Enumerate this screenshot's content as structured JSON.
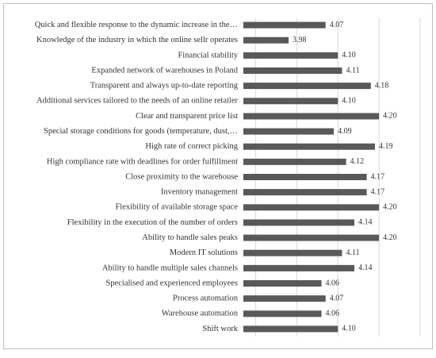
{
  "chart_data": {
    "type": "bar",
    "orientation": "horizontal",
    "categories": [
      "Quick and flexible response to the dynamic increase in the…",
      "Knowledge of the industry in which the online sellr operates",
      "Financial stability",
      "Expanded network of warehouses in Poland",
      "Transparent and always up-to-date reporting",
      "Additional services tailored to the needs of an online retailer",
      "Clear and transparent price list",
      "Special storage conditions for goods (temperature, dust,…",
      "High rate of correct picking",
      "High compliance rate with deadlines for order fulfillment",
      "Close proximity to the warehouse",
      "Inventory management",
      "Flexibility of available storage space",
      "Flexibility in the execution of the number of orders",
      "Ability to handle sales peaks",
      "Modern IT solutions",
      "Ability to handle multiple sales channels",
      "Specialised and experienced employees",
      "Process automation",
      "Warehouse automation",
      "Shift work"
    ],
    "values": [
      4.07,
      3.98,
      4.1,
      4.11,
      4.18,
      4.1,
      4.2,
      4.09,
      4.19,
      4.12,
      4.17,
      4.17,
      4.2,
      4.14,
      4.2,
      4.11,
      4.14,
      4.06,
      4.07,
      4.06,
      4.1
    ],
    "value_labels": [
      "4.07",
      "3.98",
      "4.10",
      "4.11",
      "4.18",
      "4.10",
      "4.20",
      "4.09",
      "4.19",
      "4.12",
      "4.17",
      "4.17",
      "4.20",
      "4.14",
      "4.20",
      "4.11",
      "4.14",
      "4.06",
      "4.07",
      "4.06",
      "4.10"
    ],
    "color": "#595959",
    "xlim": [
      3.87,
      4.3
    ],
    "xticks": [
      3.9,
      4.0,
      4.1,
      4.2,
      4.3
    ],
    "grid": true
  }
}
